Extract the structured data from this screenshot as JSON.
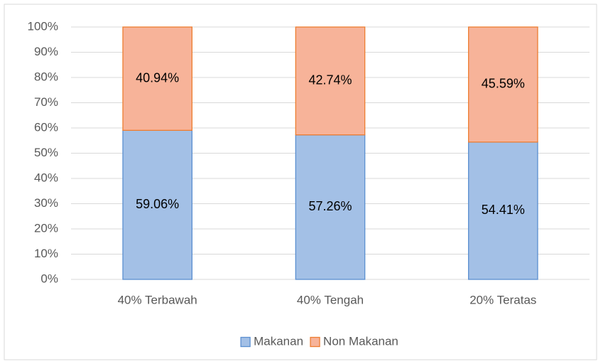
{
  "chart_data": {
    "type": "stacked_bar",
    "categories": [
      "40% Terbawah",
      "40% Tengah",
      "20% Teratas"
    ],
    "series": [
      {
        "name": "Makanan",
        "color": "#a3c0e6",
        "values": [
          59.06,
          57.26,
          54.41
        ],
        "value_labels": [
          "59.06%",
          "57.26%",
          "54.41%"
        ]
      },
      {
        "name": "Non Makanan",
        "color": "#f7b399",
        "values": [
          40.94,
          42.74,
          45.59
        ],
        "value_labels": [
          "40.94%",
          "42.74%",
          "45.59%"
        ]
      }
    ],
    "ylim": [
      0,
      100
    ],
    "yticks": [
      {
        "value": 0,
        "label": "0%"
      },
      {
        "value": 10,
        "label": "10%"
      },
      {
        "value": 20,
        "label": "20%"
      },
      {
        "value": 30,
        "label": "30%"
      },
      {
        "value": 40,
        "label": "40%"
      },
      {
        "value": 50,
        "label": "50%"
      },
      {
        "value": 60,
        "label": "60%"
      },
      {
        "value": 70,
        "label": "70%"
      },
      {
        "value": 80,
        "label": "80%"
      },
      {
        "value": 90,
        "label": "90%"
      },
      {
        "value": 100,
        "label": "100%"
      }
    ],
    "grid": true,
    "legend": "bottom"
  }
}
